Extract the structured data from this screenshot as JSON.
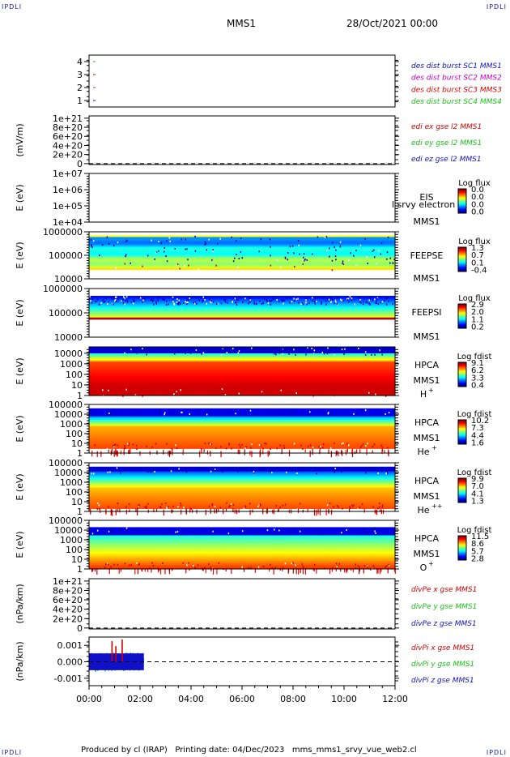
{
  "header": {
    "corner_tl": "IPDLI",
    "corner_tr": "IPDLI",
    "corner_bl": "IPDLI",
    "corner_br": "IPDLI",
    "mission": "MMS1",
    "datetime": "28/Oct/2021 00:00"
  },
  "footer": {
    "produced_by": "Produced by cl (IRAP)",
    "printing_date": "Printing date: 04/Dec/2023",
    "script": "mms_mms1_srvy_vue_web2.cl"
  },
  "colors": {
    "red": "#d40000",
    "green": "#18c018",
    "blue": "#1010c8",
    "magenta": "#c000c0"
  },
  "chart_data": [
    {
      "type": "line",
      "panel": "burst",
      "y_ticks": [
        "4",
        "3",
        "2",
        "1"
      ],
      "ylim": [
        0.5,
        4.5
      ],
      "legend": [
        {
          "label": "des dist burst SC1 MMS1",
          "color": "#1010c8",
          "y": 1
        },
        {
          "label": "des dist burst SC2 MMS2",
          "color": "#c000c0",
          "y": 2
        },
        {
          "label": "des dist burst SC3 MMS3",
          "color": "#d40000",
          "y": 3
        },
        {
          "label": "des dist burst SC4 MMS4",
          "color": "#18c018",
          "y": 4
        }
      ]
    },
    {
      "type": "line",
      "panel": "edi-e",
      "ylabel": "(mV/m)",
      "y_ticks": [
        "1e+21",
        "8e+20",
        "6e+20",
        "4e+20",
        "2e+20",
        "0"
      ],
      "y_values": [
        1e+21,
        8e+20,
        6e+20,
        4e+20,
        2e+20,
        0
      ],
      "ylim": [
        -2e+19,
        1.05e+21
      ],
      "zero_line": true,
      "legend": [
        {
          "label": "edi ex gse l2 MMS1",
          "color": "#d40000"
        },
        {
          "label": "edi ey gse l2 MMS1",
          "color": "#18c018"
        },
        {
          "label": "edi ez gse l2 MMS1",
          "color": "#1010c8"
        }
      ]
    },
    {
      "type": "heatmap",
      "panel": "eis",
      "ylabel": "E (eV)",
      "y_ticks": [
        "1e+07",
        "1e+06",
        "1e+05",
        "1e+04"
      ],
      "y_values": [
        10000000.0,
        1000000.0,
        100000.0,
        10000.0
      ],
      "ylim": [
        10000.0,
        10000000.0
      ],
      "log_y": true,
      "instrument": "EIS",
      "spacecraft": "MMS1",
      "overflow_label": "l srvy electron to",
      "colorbar_title": "Log flux",
      "colorbar_ticks": [
        "0.0",
        "0.0",
        "0.0",
        "0.0"
      ],
      "data_extent_hours": [
        0,
        0
      ]
    },
    {
      "type": "heatmap",
      "panel": "feeps-e",
      "ylabel": "E (eV)",
      "y_ticks": [
        "1000000",
        "100000",
        "10000"
      ],
      "y_values": [
        1000000.0,
        100000.0,
        10000.0
      ],
      "ylim": [
        10000.0,
        1000000.0
      ],
      "log_y": true,
      "instrument": "FEEPSE",
      "spacecraft": "MMS1",
      "colorbar_title": "Log flux",
      "colorbar_ticks": [
        "1.3",
        "0.7",
        "0.1",
        "-0.4"
      ],
      "energy_range": [
        25000.0,
        700000.0
      ],
      "data_extent_hours": [
        0,
        12
      ]
    },
    {
      "type": "heatmap",
      "panel": "feeps-i",
      "ylabel": "E (eV)",
      "y_ticks": [
        "1000000",
        "100000",
        "10000"
      ],
      "y_values": [
        1000000.0,
        100000.0,
        10000.0
      ],
      "ylim": [
        10000.0,
        1000000.0
      ],
      "log_y": true,
      "instrument": "FEEPSI",
      "spacecraft": "MMS1",
      "colorbar_title": "Log flux",
      "colorbar_ticks": [
        "2.9",
        "2.0",
        "1.1",
        "0.2"
      ],
      "energy_range": [
        55000.0,
        500000.0
      ],
      "data_extent_hours": [
        0,
        12
      ]
    },
    {
      "type": "heatmap",
      "panel": "hpca-h",
      "ylabel": "E (eV)",
      "y_ticks": [
        "10000",
        "1000",
        "100",
        "10",
        "1"
      ],
      "y_values": [
        10000.0,
        1000.0,
        100.0,
        10.0,
        1
      ],
      "ylim": [
        1,
        40000.0
      ],
      "log_y": true,
      "instrument": "HPCA",
      "spacecraft": "MMS1",
      "species": "H",
      "charge": "+",
      "colorbar_title": "Log fdist",
      "colorbar_ticks": [
        "9.1",
        "6.2",
        "3.3",
        "0.4"
      ],
      "energy_range": [
        1,
        40000.0
      ],
      "data_extent_hours": [
        0,
        12
      ]
    },
    {
      "type": "heatmap",
      "panel": "hpca-he",
      "ylabel": "E (eV)",
      "y_ticks": [
        "100000",
        "10000",
        "1000",
        "100",
        "10",
        "1"
      ],
      "y_values": [
        100000.0,
        10000.0,
        1000.0,
        100.0,
        10.0,
        1
      ],
      "ylim": [
        1,
        100000.0
      ],
      "log_y": true,
      "instrument": "HPCA",
      "spacecraft": "MMS1",
      "species": "He",
      "charge": "+",
      "colorbar_title": "Log fdist",
      "colorbar_ticks": [
        "10.2",
        "7.3",
        "4.4",
        "1.6"
      ],
      "energy_range": [
        3,
        40000.0
      ],
      "data_extent_hours": [
        0,
        12
      ]
    },
    {
      "type": "heatmap",
      "panel": "hpca-he2",
      "ylabel": "E (eV)",
      "y_ticks": [
        "100000",
        "10000",
        "1000",
        "100",
        "10",
        "1"
      ],
      "y_values": [
        100000.0,
        10000.0,
        1000.0,
        100.0,
        10.0,
        1
      ],
      "ylim": [
        1,
        100000.0
      ],
      "log_y": true,
      "instrument": "HPCA",
      "spacecraft": "MMS1",
      "species": "He",
      "charge": "++",
      "colorbar_title": "Log fdist",
      "colorbar_ticks": [
        "9.9",
        "7.0",
        "4.1",
        "1.3"
      ],
      "energy_range": [
        2,
        40000.0
      ],
      "data_extent_hours": [
        0,
        12
      ]
    },
    {
      "type": "heatmap",
      "panel": "hpca-o",
      "ylabel": "E (eV)",
      "y_ticks": [
        "100000",
        "10000",
        "1000",
        "100",
        "10",
        "1"
      ],
      "y_values": [
        100000.0,
        10000.0,
        1000.0,
        100.0,
        10.0,
        1
      ],
      "ylim": [
        1,
        100000.0
      ],
      "log_y": true,
      "instrument": "HPCA",
      "spacecraft": "MMS1",
      "species": "O",
      "charge": "+",
      "colorbar_title": "Log fdist",
      "colorbar_ticks": [
        "11.5",
        "8.6",
        "5.7",
        "2.8"
      ],
      "energy_range": [
        1.2,
        20000.0
      ],
      "data_extent_hours": [
        0,
        12
      ]
    },
    {
      "type": "line",
      "panel": "divpe",
      "ylabel": "(nPa/km)",
      "y_ticks": [
        "1e+21",
        "8e+20",
        "6e+20",
        "4e+20",
        "2e+20",
        "0"
      ],
      "y_values": [
        1e+21,
        8e+20,
        6e+20,
        4e+20,
        2e+20,
        0
      ],
      "ylim": [
        -2e+19,
        1.05e+21
      ],
      "zero_line": true,
      "legend": [
        {
          "label": "divPe x gse MMS1",
          "color": "#d40000"
        },
        {
          "label": "divPe y gse MMS1",
          "color": "#18c018"
        },
        {
          "label": "divPe z gse MMS1",
          "color": "#1010c8"
        }
      ]
    },
    {
      "type": "line",
      "panel": "divpi",
      "ylabel": "(nPa/km)",
      "y_ticks": [
        "0.001",
        "0.000",
        "-0.001"
      ],
      "y_values": [
        0.001,
        0.0,
        -0.001
      ],
      "ylim": [
        -0.00145,
        0.0015
      ],
      "zero_line": true,
      "data_extent_hours": [
        0,
        2.15
      ],
      "noise_amplitude": 0.0006,
      "spikes": [
        {
          "x": 0.9,
          "y": 0.00125
        },
        {
          "x": 1.05,
          "y": 0.00095
        },
        {
          "x": 1.3,
          "y": 0.00135
        }
      ],
      "legend": [
        {
          "label": "divPi x gse MMS1",
          "color": "#d40000"
        },
        {
          "label": "divPi y gse MMS1",
          "color": "#18c018"
        },
        {
          "label": "divPi z gse MMS1",
          "color": "#1010c8"
        }
      ]
    }
  ],
  "time_axis": {
    "ticks": [
      "00:00",
      "02:00",
      "04:00",
      "06:00",
      "08:00",
      "10:00",
      "12:00"
    ],
    "values": [
      0,
      2,
      4,
      6,
      8,
      10,
      12
    ],
    "xlim": [
      0,
      12
    ]
  }
}
